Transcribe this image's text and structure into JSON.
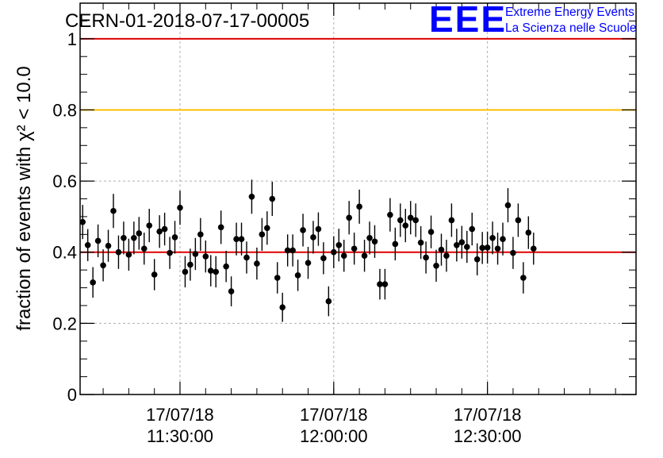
{
  "header": {
    "title": "CERN-01-2018-07-17-00005",
    "logo_text": "EEE",
    "logo_line1": "Extreme Energy Events",
    "logo_line2": "La Scienza nelle Scuole"
  },
  "colors": {
    "points": "#000000",
    "line_red": "#e00000",
    "line_orange": "#ffbf00",
    "logo_blue": "#0000ff",
    "grid": "#b0b0b0"
  },
  "chart_data": {
    "type": "scatter",
    "title": "CERN-01-2018-07-17-00005",
    "ylabel": "fraction of events with χ² < 10.0",
    "xlabel": "",
    "xlim": [
      "2018-07-17 11:10:30",
      "2018-07-17 12:59:00"
    ],
    "ylim": [
      0,
      1.1
    ],
    "yticks": [
      0,
      0.2,
      0.4,
      0.6,
      0.8,
      1
    ],
    "ytick_labels": [
      "0",
      "0.2",
      "0.4",
      "0.6",
      "0.8",
      "1"
    ],
    "xticks": [
      {
        "x": "2018-07-17 11:30:00",
        "date": "17/07/18",
        "time": "11:30:00"
      },
      {
        "x": "2018-07-17 12:00:00",
        "date": "17/07/18",
        "time": "12:00:00"
      },
      {
        "x": "2018-07-17 12:30:00",
        "date": "17/07/18",
        "time": "12:30:00"
      }
    ],
    "grid": true,
    "reference_lines": [
      {
        "y": 1.0,
        "color": "#e00000"
      },
      {
        "y": 0.8,
        "color": "#ffbf00"
      },
      {
        "y": 0.4,
        "color": "#e00000"
      }
    ],
    "x_start": "2018-07-17 11:10:30",
    "x_step_minutes": 1,
    "series": [
      {
        "values": [
          0.485,
          0.42,
          0.315,
          0.432,
          0.363,
          0.418,
          0.516,
          0.4,
          0.44,
          0.393,
          0.44,
          0.453,
          0.41,
          0.475,
          0.337,
          0.458,
          0.465,
          0.398,
          0.442,
          0.525,
          0.345,
          0.365,
          0.395,
          0.45,
          0.388,
          0.348,
          0.345,
          0.47,
          0.36,
          0.29,
          0.437,
          0.437,
          0.385,
          0.556,
          0.368,
          0.45,
          0.468,
          0.55,
          0.328,
          0.245,
          0.405,
          0.405,
          0.335,
          0.462,
          0.37,
          0.442,
          0.465,
          0.383,
          0.262,
          0.4,
          0.42,
          0.39,
          0.497,
          0.41,
          0.528,
          0.39,
          0.44,
          0.43,
          0.31,
          0.31,
          0.505,
          0.423,
          0.49,
          0.475,
          0.497,
          0.49,
          0.427,
          0.385,
          0.457,
          0.362,
          0.407,
          0.39,
          0.49,
          0.42,
          0.428,
          0.415,
          0.465,
          0.38,
          0.412,
          0.413,
          0.44,
          0.41,
          0.437,
          0.532,
          0.398,
          0.49,
          0.328,
          0.455,
          0.41
        ],
        "errors": [
          0.048,
          0.045,
          0.043,
          0.046,
          0.045,
          0.045,
          0.048,
          0.047,
          0.046,
          0.045,
          0.046,
          0.046,
          0.045,
          0.047,
          0.044,
          0.046,
          0.046,
          0.045,
          0.046,
          0.048,
          0.044,
          0.045,
          0.045,
          0.046,
          0.045,
          0.044,
          0.044,
          0.047,
          0.044,
          0.042,
          0.046,
          0.046,
          0.045,
          0.048,
          0.045,
          0.046,
          0.047,
          0.048,
          0.044,
          0.041,
          0.045,
          0.045,
          0.044,
          0.046,
          0.045,
          0.046,
          0.047,
          0.045,
          0.042,
          0.045,
          0.046,
          0.045,
          0.047,
          0.045,
          0.048,
          0.045,
          0.046,
          0.046,
          0.043,
          0.043,
          0.047,
          0.046,
          0.047,
          0.047,
          0.047,
          0.047,
          0.046,
          0.045,
          0.046,
          0.045,
          0.045,
          0.045,
          0.047,
          0.046,
          0.046,
          0.045,
          0.046,
          0.045,
          0.045,
          0.045,
          0.046,
          0.045,
          0.046,
          0.048,
          0.045,
          0.047,
          0.044,
          0.046,
          0.045
        ]
      }
    ]
  }
}
